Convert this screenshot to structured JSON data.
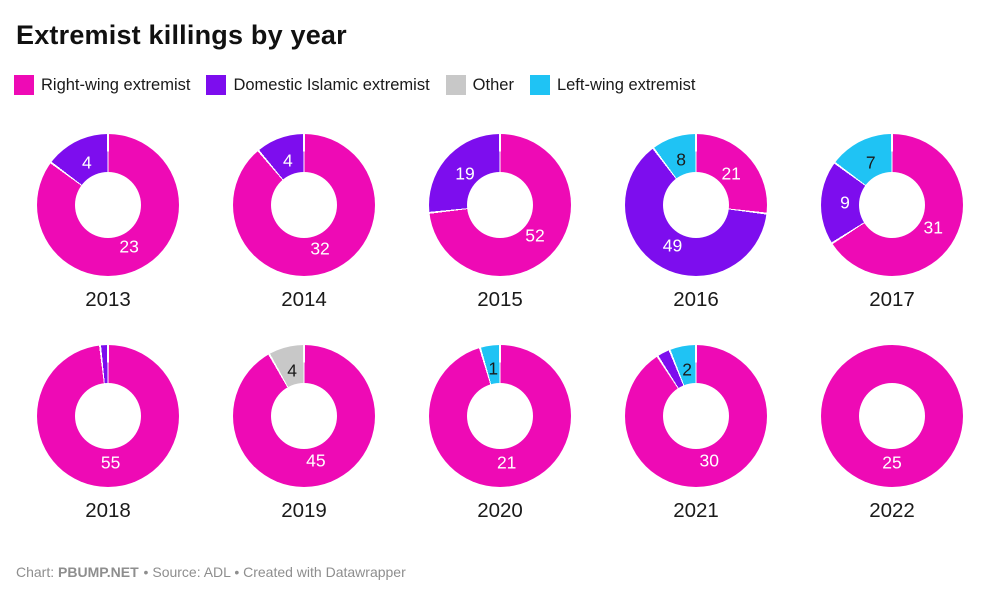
{
  "title": "Extremist killings by year",
  "footer": {
    "prefix": "Chart: ",
    "brand": "PBUMP.NET",
    "suffix": " • Source: ADL • Created with Datawrapper"
  },
  "colors": {
    "right_wing": "#ee0ab5",
    "domestic_islamic": "#7d0dee",
    "other": "#c8c8c8",
    "left_wing": "#1fc3f4",
    "label_light": "#ffffff",
    "label_dark": "#1a1a1a",
    "footer_gray": "#8e8e8e"
  },
  "chart_data": {
    "type": "pie",
    "variant": "donut-small-multiples",
    "title": "Extremist killings by year",
    "legend_position": "top",
    "categories": [
      {
        "key": "right_wing",
        "name": "Right-wing extremist",
        "color": "#ee0ab5",
        "label_color": "#ffffff"
      },
      {
        "key": "domestic_islamic",
        "name": "Domestic Islamic extremist",
        "color": "#7d0dee",
        "label_color": "#ffffff"
      },
      {
        "key": "other",
        "name": "Other",
        "color": "#c8c8c8",
        "label_color": "#1a1a1a"
      },
      {
        "key": "left_wing",
        "name": "Left-wing extremist",
        "color": "#1fc3f4",
        "label_color": "#1a1a1a"
      }
    ],
    "years": [
      {
        "year": "2013",
        "slices": [
          {
            "category": "right_wing",
            "value": 23,
            "labeled": true
          },
          {
            "category": "domestic_islamic",
            "value": 4,
            "labeled": true
          }
        ]
      },
      {
        "year": "2014",
        "slices": [
          {
            "category": "right_wing",
            "value": 32,
            "labeled": true
          },
          {
            "category": "domestic_islamic",
            "value": 4,
            "labeled": true
          }
        ]
      },
      {
        "year": "2015",
        "slices": [
          {
            "category": "right_wing",
            "value": 52,
            "labeled": true
          },
          {
            "category": "domestic_islamic",
            "value": 19,
            "labeled": true
          }
        ]
      },
      {
        "year": "2016",
        "slices": [
          {
            "category": "right_wing",
            "value": 21,
            "labeled": true
          },
          {
            "category": "domestic_islamic",
            "value": 49,
            "labeled": true
          },
          {
            "category": "left_wing",
            "value": 8,
            "labeled": true
          }
        ]
      },
      {
        "year": "2017",
        "slices": [
          {
            "category": "right_wing",
            "value": 31,
            "labeled": true
          },
          {
            "category": "domestic_islamic",
            "value": 9,
            "labeled": true
          },
          {
            "category": "left_wing",
            "value": 7,
            "labeled": true
          }
        ]
      },
      {
        "year": "2018",
        "slices": [
          {
            "category": "right_wing",
            "value": 55,
            "labeled": true
          },
          {
            "category": "domestic_islamic",
            "value": 1,
            "labeled": false
          }
        ]
      },
      {
        "year": "2019",
        "slices": [
          {
            "category": "right_wing",
            "value": 45,
            "labeled": true
          },
          {
            "category": "other",
            "value": 4,
            "labeled": true
          }
        ]
      },
      {
        "year": "2020",
        "slices": [
          {
            "category": "right_wing",
            "value": 21,
            "labeled": true
          },
          {
            "category": "left_wing",
            "value": 1,
            "labeled": true
          }
        ]
      },
      {
        "year": "2021",
        "slices": [
          {
            "category": "right_wing",
            "value": 30,
            "labeled": true
          },
          {
            "category": "domestic_islamic",
            "value": 1,
            "labeled": false
          },
          {
            "category": "left_wing",
            "value": 2,
            "labeled": true
          }
        ]
      },
      {
        "year": "2022",
        "slices": [
          {
            "category": "right_wing",
            "value": 25,
            "labeled": true
          }
        ]
      }
    ]
  }
}
